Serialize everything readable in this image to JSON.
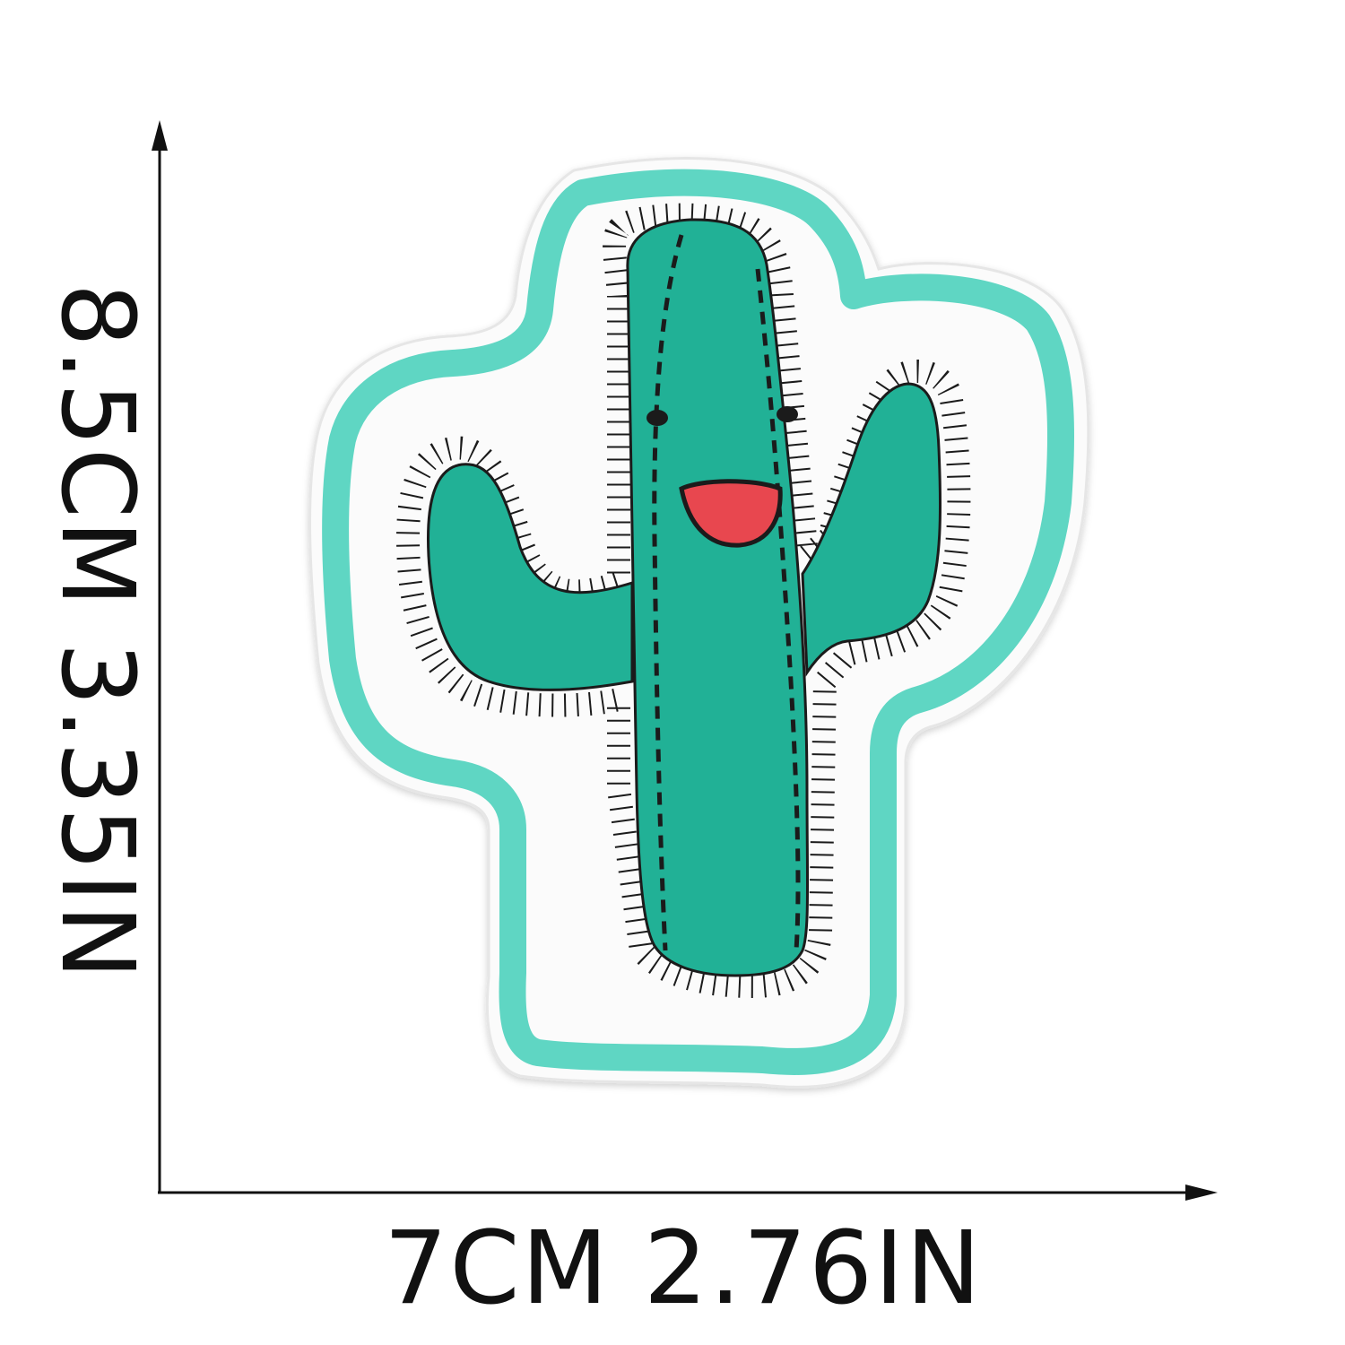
{
  "dimensions": {
    "height_label": "8.5CM  3.35IN",
    "width_label": "7CM  2.76IN"
  },
  "product": {
    "icon": "cactus-embroidered-patch",
    "colors": {
      "felt": "#fdfdfd",
      "border": "#5fd6c3",
      "cactus": "#21b196",
      "stitch": "#1b1b1b",
      "mouth": "#e8474f"
    }
  }
}
